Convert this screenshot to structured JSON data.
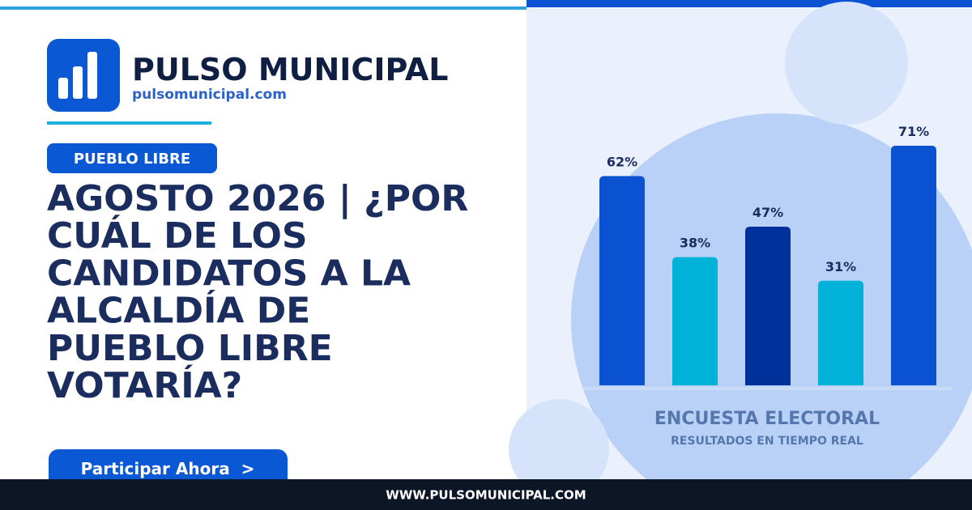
{
  "brand": {
    "name": "PULSO MUNICIPAL",
    "url": "pulsomunicipal.com"
  },
  "tag": "PUEBLO LIBRE",
  "headline": [
    "AGOSTO 2026 | ¿POR",
    "CUÁL DE LOS",
    "CANDIDATOS A LA",
    "ALCALDÍA DE",
    "PUEBLO LIBRE",
    "VOTARÍA?"
  ],
  "button": "Participar Ahora  >",
  "footer": "WWW.PULSOMUNICIPAL.COM",
  "chart_data": {
    "type": "bar",
    "title": "ENCUESTA ELECTORAL",
    "subtitle": "RESULTADOS EN TIEMPO REAL",
    "categories": [
      null,
      null,
      null,
      null,
      null
    ],
    "values": [
      62,
      38,
      47,
      31,
      71
    ],
    "value_labels": [
      "62%",
      "38%",
      "47%",
      "31%",
      "71%"
    ],
    "colors": [
      "#0a52d2",
      "#00b2d8",
      "#00309a",
      "#00b2d8",
      "#0a52d2"
    ]
  }
}
